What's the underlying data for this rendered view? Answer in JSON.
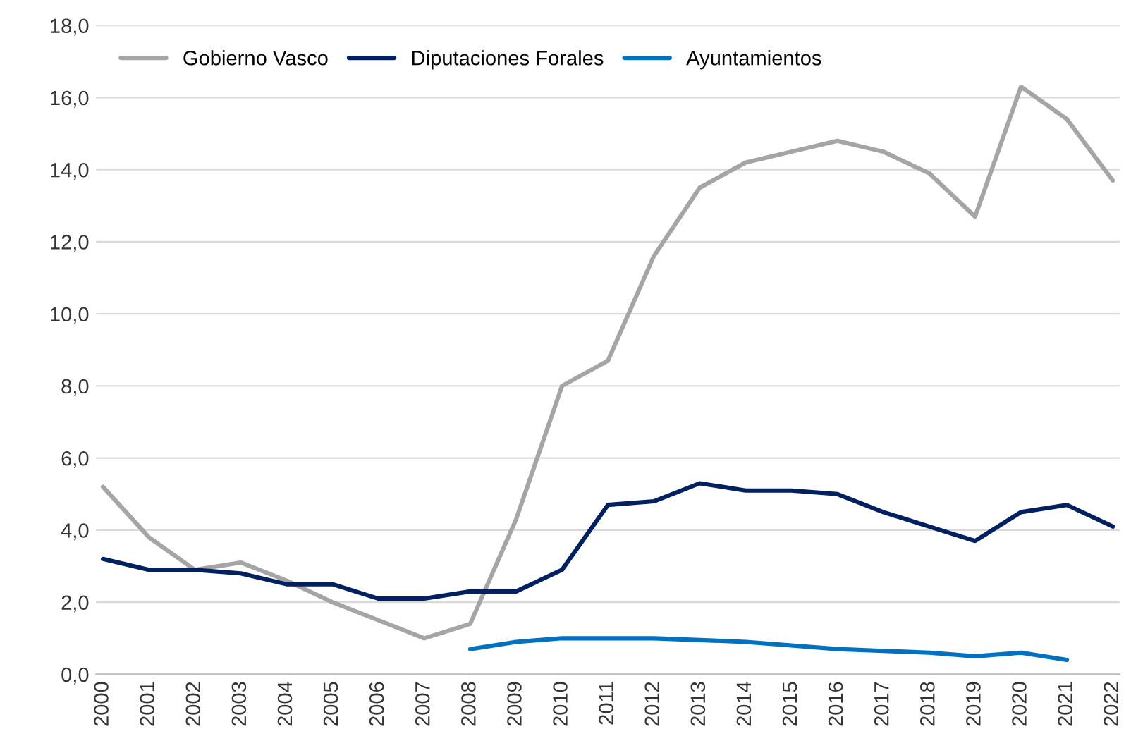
{
  "chart_data": {
    "type": "line",
    "categories": [
      "2000",
      "2001",
      "2002",
      "2003",
      "2004",
      "2005",
      "2006",
      "2007",
      "2008",
      "2009",
      "2010",
      "2011",
      "2012",
      "2013",
      "2014",
      "2015",
      "2016",
      "2017",
      "2018",
      "2019",
      "2020",
      "2021",
      "2022"
    ],
    "series": [
      {
        "name": "Gobierno Vasco",
        "color": "#a5a5a5",
        "values": [
          5.2,
          3.8,
          2.9,
          3.1,
          2.6,
          2.0,
          1.5,
          1.0,
          1.4,
          4.3,
          8.0,
          8.7,
          11.6,
          13.5,
          14.2,
          14.5,
          14.8,
          14.5,
          13.9,
          12.7,
          16.3,
          15.4,
          13.7
        ]
      },
      {
        "name": "Diputaciones Forales",
        "color": "#002060",
        "values": [
          3.2,
          2.9,
          2.9,
          2.8,
          2.5,
          2.5,
          2.1,
          2.1,
          2.3,
          2.3,
          2.9,
          4.7,
          4.8,
          5.3,
          5.1,
          5.1,
          5.0,
          4.5,
          4.1,
          3.7,
          4.5,
          4.7,
          4.1
        ]
      },
      {
        "name": "Ayuntamientos",
        "color": "#0070c0",
        "values": [
          null,
          null,
          null,
          null,
          null,
          null,
          null,
          null,
          0.7,
          0.9,
          1.0,
          1.0,
          1.0,
          0.95,
          0.9,
          0.8,
          0.7,
          0.65,
          0.6,
          0.5,
          0.6,
          0.4,
          null
        ]
      }
    ],
    "ylim": [
      0,
      18
    ],
    "yticks": [
      {
        "value": 0,
        "label": "0,0"
      },
      {
        "value": 2,
        "label": "2,0"
      },
      {
        "value": 4,
        "label": "4,0"
      },
      {
        "value": 6,
        "label": "6,0"
      },
      {
        "value": 8,
        "label": "8,0"
      },
      {
        "value": 10,
        "label": "10,0"
      },
      {
        "value": 12,
        "label": "12,0"
      },
      {
        "value": 14,
        "label": "14,0"
      },
      {
        "value": 16,
        "label": "16,0"
      },
      {
        "value": 18,
        "label": "18,0"
      }
    ],
    "grid": "y",
    "legend": "top left",
    "marker": "none",
    "line_style": "solid"
  }
}
